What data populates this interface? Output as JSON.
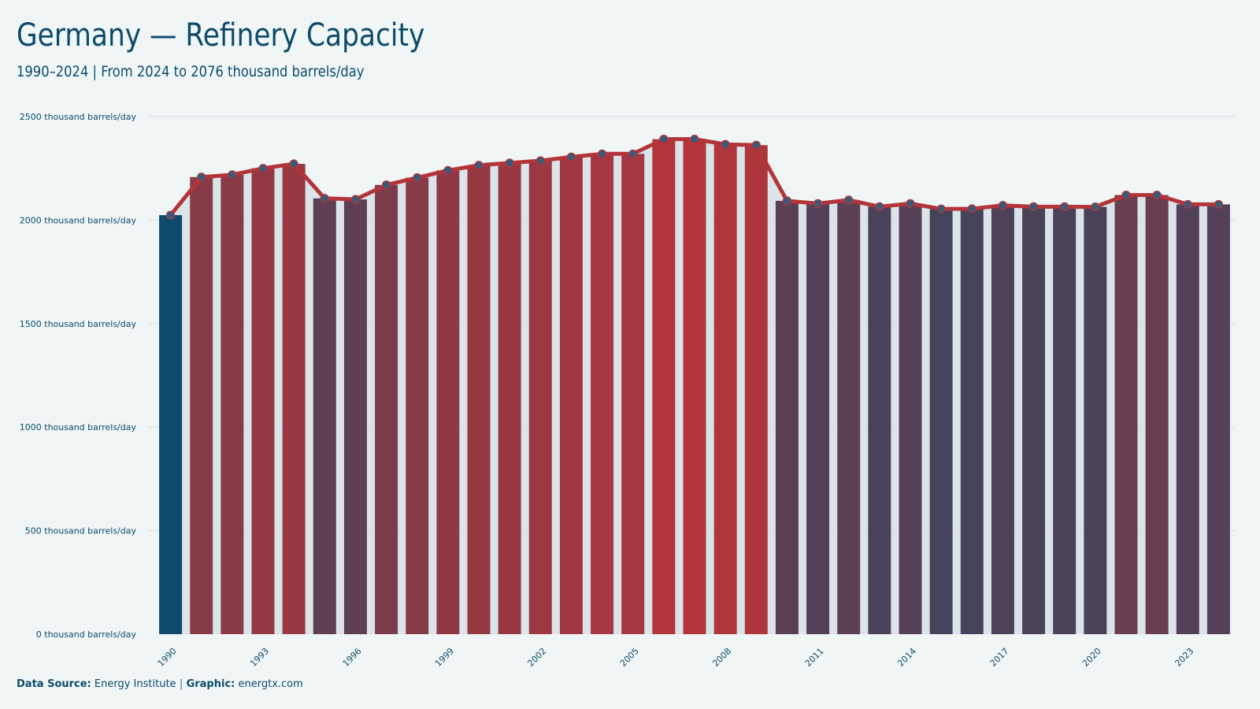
{
  "title": "Germany — Refinery Capacity",
  "subtitle": "1990–2024 | From 2024 to 2076 thousand barrels/day",
  "footer": {
    "source_label": "Data Source:",
    "source_value": "Energy Institute",
    "separator": "|",
    "graphic_label": "Graphic:",
    "graphic_value": "energtx.com"
  },
  "chart_data": {
    "type": "bar",
    "overlay": "line",
    "x": [
      1990,
      1991,
      1992,
      1993,
      1994,
      1995,
      1996,
      1997,
      1998,
      1999,
      2000,
      2001,
      2002,
      2003,
      2004,
      2005,
      2006,
      2007,
      2008,
      2009,
      2010,
      2011,
      2012,
      2013,
      2014,
      2015,
      2016,
      2017,
      2018,
      2019,
      2020,
      2021,
      2022,
      2023,
      2024
    ],
    "values": [
      2024,
      2208,
      2219,
      2250,
      2272,
      2105,
      2100,
      2170,
      2205,
      2240,
      2265,
      2276,
      2287,
      2305,
      2320,
      2320,
      2391,
      2391,
      2366,
      2362,
      2093,
      2080,
      2097,
      2065,
      2080,
      2054,
      2055,
      2071,
      2065,
      2065,
      2064,
      2121,
      2121,
      2076,
      2076
    ],
    "x_tick_labels": [
      "1990",
      "1993",
      "1996",
      "1999",
      "2002",
      "2005",
      "2008",
      "2011",
      "2014",
      "2017",
      "2020",
      "2023"
    ],
    "y_ticks": [
      0,
      500,
      1000,
      1500,
      2000,
      2500
    ],
    "y_tick_labels": [
      "0 thousand barrels/day",
      "500 thousand barrels/day",
      "1000 thousand barrels/day",
      "1500 thousand barrels/day",
      "2000 thousand barrels/day",
      "2500 thousand barrels/day"
    ],
    "ylim": [
      0,
      2500
    ],
    "grid": true,
    "xlabel": "",
    "ylabel": "",
    "colors": {
      "low": "#0d4a6b",
      "high": "#b3353a",
      "line": "#b3353a",
      "marker_fill": "#3a5a78",
      "area": "#d7e1e5",
      "grid": "#d5dde1"
    }
  }
}
